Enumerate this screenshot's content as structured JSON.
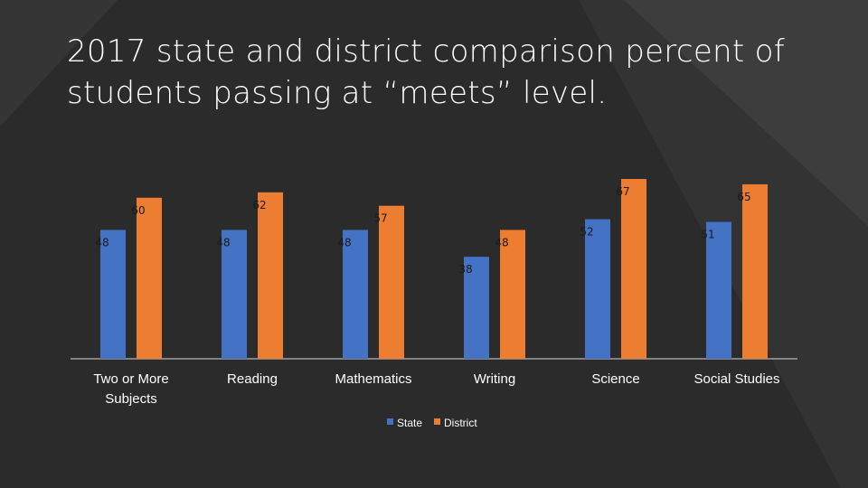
{
  "title": "2017 state and district comparison percent of students passing at “meets” level.",
  "colors": {
    "background": "#2b2b2b",
    "state": "#4472c4",
    "district": "#ed7d31",
    "text": "#ffffff"
  },
  "chart_data": {
    "type": "bar",
    "title": "",
    "xlabel": "",
    "ylabel": "",
    "categories": [
      "Two or More Subjects",
      "Reading",
      "Mathematics",
      "Writing",
      "Science",
      "Social Studies"
    ],
    "series": [
      {
        "name": "State",
        "values": [
          48,
          48,
          48,
          38,
          52,
          51
        ]
      },
      {
        "name": "District",
        "values": [
          60,
          62,
          57,
          48,
          67,
          65
        ]
      }
    ],
    "ylim": [
      0,
      100
    ],
    "grid": false,
    "data_labels": true,
    "legend": "bottom"
  }
}
